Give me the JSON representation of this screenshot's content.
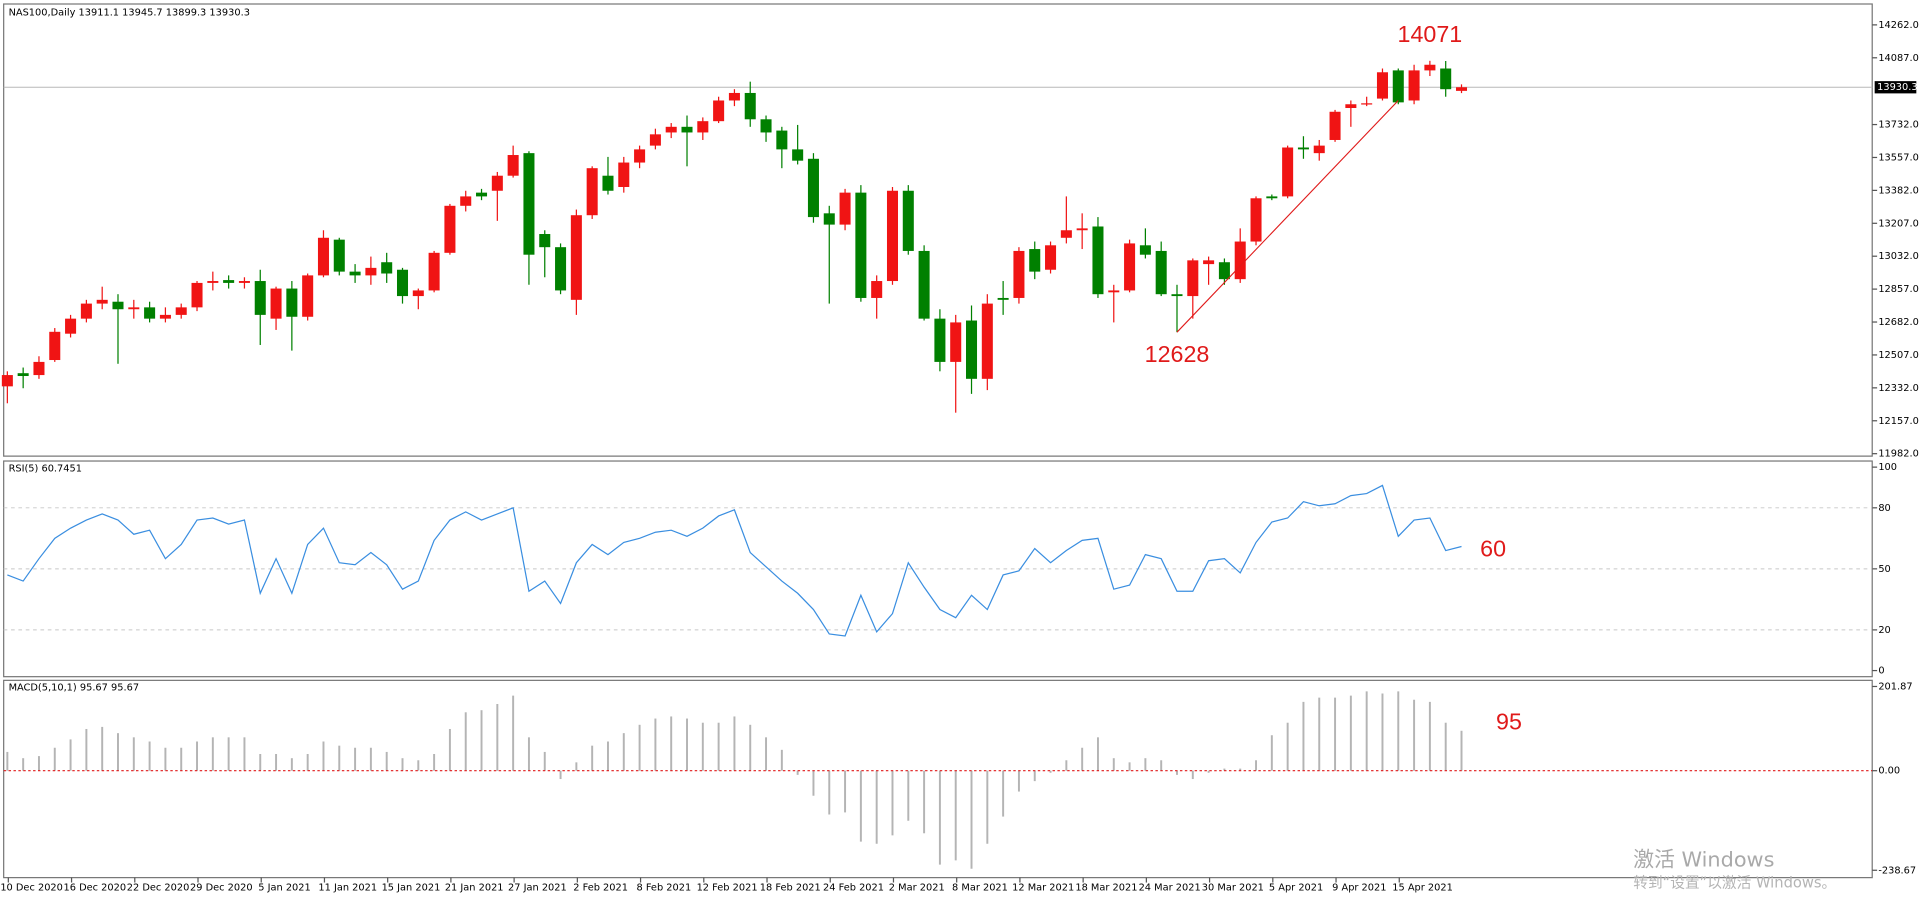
{
  "header": "NAS100,Daily  13911.1 13945.7 13899.3 13930.3",
  "watermark": {
    "line1": "激活 Windows",
    "line2": "转到“设置”以激活 Windows。"
  },
  "chart_data": [
    {
      "type": "candlestick",
      "up_color": "#f01414",
      "down_color": "#008000",
      "categories": [
        null,
        null,
        "10 Dec 2020",
        null,
        null,
        null,
        "16 Dec 2020",
        null,
        null,
        null,
        "22 Dec 2020",
        null,
        null,
        null,
        "29 Dec 2020",
        null,
        null,
        null,
        "5 Jan 2021",
        null,
        null,
        null,
        "11 Jan 2021",
        null,
        null,
        null,
        "15 Jan 2021",
        null,
        null,
        null,
        "21 Jan 2021",
        null,
        null,
        null,
        "27 Jan 2021",
        null,
        null,
        null,
        "2 Feb 2021",
        null,
        null,
        null,
        "8 Feb 2021",
        null,
        null,
        null,
        "12 Feb 2021",
        null,
        null,
        null,
        "18 Feb 2021",
        null,
        null,
        null,
        "24 Feb 2021",
        null,
        null,
        null,
        "2 Mar 2021",
        null,
        null,
        null,
        "8 Mar 2021",
        null,
        null,
        null,
        "12 Mar 2021",
        null,
        null,
        null,
        "18 Mar 2021",
        null,
        null,
        null,
        "24 Mar 2021",
        null,
        null,
        null,
        "30 Mar 2021",
        null,
        null,
        null,
        "5 Apr 2021",
        null,
        null,
        null,
        "9 Apr 2021",
        null,
        null,
        null,
        "15 Apr 2021",
        null,
        null
      ],
      "open": [
        12340,
        12410,
        12400,
        12480,
        12620,
        12700,
        12780,
        12790,
        12750,
        12760,
        12700,
        12720,
        12760,
        12890,
        12905,
        12890,
        12900,
        12700,
        12860,
        12710,
        12930,
        13120,
        12950,
        12930,
        13000,
        12960,
        12820,
        12850,
        13050,
        13300,
        13370,
        13380,
        13460,
        13580,
        13150,
        13080,
        12800,
        13250,
        13460,
        13400,
        13530,
        13620,
        13690,
        13720,
        13690,
        13750,
        13860,
        13900,
        13760,
        13700,
        13600,
        13550,
        13260,
        13200,
        13370,
        12810,
        12900,
        13380,
        13060,
        12700,
        12470,
        12690,
        12380,
        12810,
        12810,
        13070,
        12960,
        13130,
        13170,
        13190,
        12840,
        12850,
        13090,
        13060,
        12830,
        12820,
        12990,
        13000,
        12910,
        13110,
        13350,
        13350,
        13610,
        13580,
        13650,
        13820,
        13840,
        13870,
        14020,
        13860,
        14020,
        14030,
        13911.1
      ],
      "high": [
        12420,
        12440,
        12500,
        12650,
        12720,
        12800,
        12870,
        12830,
        12800,
        12790,
        12760,
        12780,
        12900,
        12950,
        12930,
        12920,
        12960,
        12870,
        12900,
        12940,
        13170,
        13130,
        12990,
        13030,
        13050,
        12970,
        12860,
        13060,
        13310,
        13380,
        13390,
        13480,
        13620,
        13590,
        13170,
        13100,
        13280,
        13510,
        13560,
        13560,
        13620,
        13710,
        13740,
        13780,
        13770,
        13880,
        13920,
        13960,
        13780,
        13720,
        13730,
        13580,
        13300,
        13390,
        13410,
        12930,
        13400,
        13410,
        13090,
        12750,
        12720,
        12770,
        12830,
        12900,
        13080,
        13110,
        13110,
        13350,
        13260,
        13240,
        12880,
        13120,
        13180,
        13110,
        12880,
        13020,
        13030,
        13020,
        13180,
        13350,
        13360,
        13620,
        13670,
        13650,
        13810,
        13860,
        13880,
        14030,
        14030,
        14050,
        14071,
        14070,
        13945.7
      ],
      "low": [
        12250,
        12330,
        12380,
        12470,
        12600,
        12680,
        12750,
        12460,
        12700,
        12680,
        12680,
        12700,
        12740,
        12850,
        12860,
        12860,
        12560,
        12640,
        12530,
        12690,
        12920,
        12930,
        12890,
        12880,
        12890,
        12780,
        12750,
        12840,
        13040,
        13270,
        13330,
        13220,
        13450,
        12880,
        12920,
        12830,
        12720,
        13230,
        13360,
        13370,
        13500,
        13600,
        13660,
        13510,
        13650,
        13740,
        13830,
        13720,
        13640,
        13500,
        13520,
        13210,
        12780,
        13170,
        12790,
        12700,
        12880,
        13040,
        12690,
        12420,
        12200,
        12300,
        12320,
        12720,
        12780,
        12910,
        12940,
        13100,
        13070,
        12810,
        12680,
        12840,
        13020,
        12820,
        12628,
        12700,
        12880,
        12880,
        12890,
        13090,
        13330,
        13340,
        13550,
        13540,
        13640,
        13720,
        13830,
        13860,
        13840,
        13840,
        13990,
        13880,
        13899.3
      ],
      "close": [
        12400,
        12395,
        12470,
        12630,
        12700,
        12780,
        12800,
        12750,
        12760,
        12700,
        12720,
        12760,
        12890,
        12900,
        12890,
        12900,
        12720,
        12860,
        12710,
        12930,
        13130,
        12950,
        12930,
        12970,
        12940,
        12820,
        12850,
        13050,
        13300,
        13350,
        13350,
        13460,
        13570,
        13040,
        13080,
        12850,
        13250,
        13500,
        13380,
        13530,
        13600,
        13680,
        13720,
        13690,
        13750,
        13860,
        13900,
        13760,
        13690,
        13600,
        13540,
        13240,
        13200,
        13370,
        12810,
        12900,
        13380,
        13060,
        12700,
        12470,
        12680,
        12380,
        12780,
        12800,
        13060,
        12950,
        13090,
        13170,
        13180,
        12830,
        12850,
        13100,
        13040,
        12830,
        12820,
        13010,
        13010,
        12910,
        13110,
        13340,
        13340,
        13610,
        13600,
        13620,
        13800,
        13840,
        13845,
        14010,
        13850,
        14020,
        14050,
        13920,
        13930.3
      ],
      "ylim": [
        11969,
        14373
      ],
      "yticks": [
        {
          "value": 11982,
          "label": "11982.0"
        },
        {
          "value": 12157,
          "label": "12157.0"
        },
        {
          "value": 12332,
          "label": "12332.0"
        },
        {
          "value": 12507,
          "label": "12507.0"
        },
        {
          "value": 12682,
          "label": "12682.0"
        },
        {
          "value": 12857,
          "label": "12857.0"
        },
        {
          "value": 13032,
          "label": "13032.0"
        },
        {
          "value": 13207,
          "label": "13207.0"
        },
        {
          "value": 13382,
          "label": "13382.0"
        },
        {
          "value": 13557,
          "label": "13557.0"
        },
        {
          "value": 13732,
          "label": "13732.0"
        },
        {
          "value": 14087,
          "label": "14087.0"
        },
        {
          "value": 14262,
          "label": "14262.0"
        }
      ],
      "current_price": 13930.3,
      "annotations": [
        14071,
        12628
      ]
    },
    {
      "type": "line",
      "title": "RSI(5) 60.7451",
      "color": "#3a8ee0",
      "values": [
        47,
        44,
        55,
        65,
        70,
        74,
        77,
        74,
        67,
        69,
        55,
        62,
        74,
        75,
        72,
        74,
        38,
        55,
        38,
        62,
        70,
        53,
        52,
        58,
        52,
        40,
        44,
        64,
        74,
        78,
        74,
        77,
        80,
        39,
        44,
        33,
        53,
        62,
        57,
        63,
        65,
        68,
        69,
        66,
        70,
        76,
        79,
        58,
        51,
        44,
        38,
        30,
        18,
        17,
        37,
        19,
        28,
        53,
        41,
        30,
        26,
        37,
        30,
        47,
        49,
        60,
        53,
        59,
        64,
        65,
        40,
        42,
        57,
        55,
        39,
        39,
        54,
        55,
        48,
        63,
        73,
        75,
        83,
        81,
        82,
        86,
        87,
        91,
        66,
        74,
        75,
        59,
        61
      ],
      "ylim": [
        -3,
        103
      ],
      "yticks": [
        0,
        20,
        50,
        80,
        100
      ],
      "grid_levels": [
        20,
        50,
        80
      ],
      "annotation": 60
    },
    {
      "type": "bar",
      "title": "MACD(5,10,1) 95.67 95.67",
      "color": "#b4b4b4",
      "zero_color": "#e01a1a",
      "values": [
        45,
        30,
        35,
        55,
        75,
        100,
        105,
        90,
        80,
        70,
        55,
        55,
        70,
        80,
        80,
        80,
        40,
        40,
        30,
        40,
        70,
        60,
        55,
        55,
        45,
        30,
        25,
        40,
        100,
        140,
        145,
        160,
        180,
        80,
        45,
        -20,
        20,
        60,
        70,
        90,
        110,
        125,
        130,
        125,
        115,
        115,
        130,
        110,
        80,
        50,
        -10,
        -60,
        -105,
        -100,
        -170,
        -175,
        -155,
        -120,
        -150,
        -225,
        -215,
        -235,
        -175,
        -110,
        -50,
        -25,
        -5,
        25,
        55,
        80,
        30,
        20,
        30,
        25,
        -10,
        -20,
        -5,
        5,
        5,
        25,
        85,
        115,
        165,
        175,
        175,
        180,
        190,
        185,
        190,
        170,
        165,
        115,
        95.67
      ],
      "ylim": [
        -256.29,
        216.55
      ],
      "yticks": [
        -238.67,
        {
          "value": 0,
          "label": "0.00"
        },
        201.87
      ],
      "annotation": 95
    }
  ]
}
